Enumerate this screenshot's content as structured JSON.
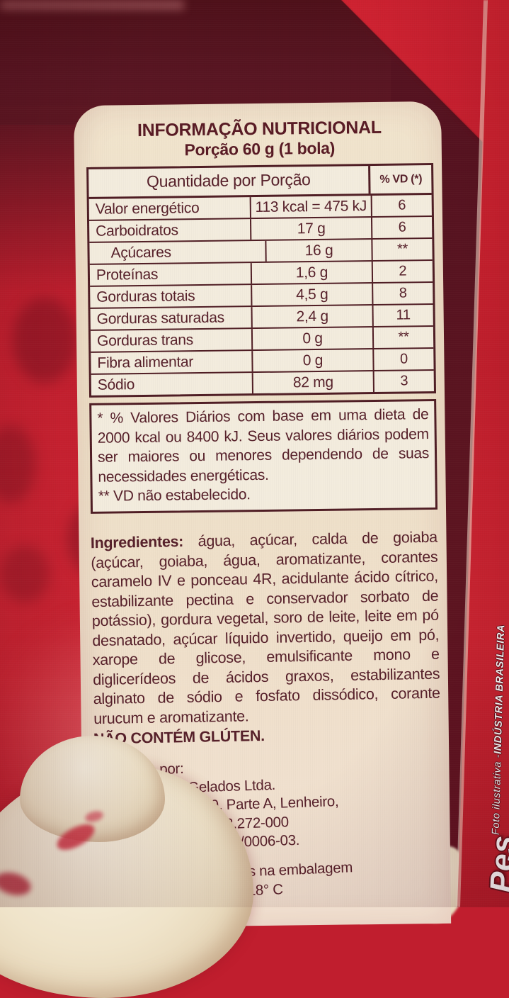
{
  "label": {
    "title": "INFORMAÇÃO NUTRICIONAL",
    "subtitle": "Porção 60 g (1 bola)",
    "table": {
      "header_quantity": "Quantidade por Porção",
      "header_vd": "% VD (*)",
      "rows": [
        {
          "name": "Valor energético",
          "amount": "113 kcal = 475 kJ",
          "vd": "6",
          "indent": false
        },
        {
          "name": "Carboidratos",
          "amount": "17 g",
          "vd": "6",
          "indent": false
        },
        {
          "name": "Açúcares",
          "amount": "16 g",
          "vd": "**",
          "indent": true
        },
        {
          "name": "Proteínas",
          "amount": "1,6 g",
          "vd": "2",
          "indent": false
        },
        {
          "name": "Gorduras totais",
          "amount": "4,5 g",
          "vd": "8",
          "indent": false
        },
        {
          "name": "Gorduras saturadas",
          "amount": "2,4 g",
          "vd": "11",
          "indent": false
        },
        {
          "name": "Gorduras trans",
          "amount": "0 g",
          "vd": "**",
          "indent": false
        },
        {
          "name": "Fibra alimentar",
          "amount": "0 g",
          "vd": "0",
          "indent": false
        },
        {
          "name": "Sódio",
          "amount": "82 mg",
          "vd": "3",
          "indent": false
        }
      ]
    },
    "footnotes": [
      "* % Valores Diários com base em uma dieta de 2000 kcal ou 8400 kJ. Seus valores diários podem ser maiores ou menores dependendo de suas necessidades energéticas.",
      "** VD não estabelecido."
    ],
    "ingredients_label": "Ingredientes:",
    "ingredients_text": "água, açúcar, calda de goiaba (açúcar, goiaba, água, aromatizante, corantes caramelo IV e ponceau 4R, acidulante ácido cítrico, estabilizante pectina e conservador sorbato de potássio), gordura vegetal, soro de leite, leite em pó desnatado, açúcar líquido invertido, queijo em pó, xarope de glicose, emulsificante mono e diglicerídeos de ácidos graxos, estabilizantes alginato de sódio e fosfato dissódico, corante urucum e aromatizante.",
    "gluten_notice": "NÃO CONTÉM GLÚTEN.",
    "manufacturer": {
      "heading": "Fabricado por:",
      "company": "Unilever Brasil Gelados Ltda.",
      "address1": "Av. Gessy Lever, 99, Parte A, Lenheiro,",
      "address2": "Valinhos - SP. CEP 13.272-000",
      "cnpj": "C.N.P.J. n°: 11.806.723/0006-03."
    },
    "validity": {
      "line1": "Válido até/Lote: indicados na embalagem",
      "line2": "Conservar em freezer: - 18° C"
    }
  },
  "side": {
    "photo_credit": "Foto ilustrativa - ",
    "industry": "INDÚSTRIA BRASILEIRA",
    "weight_partial": "Pes"
  },
  "colors": {
    "package_red": "#c4202f",
    "package_dark_maroon": "#561420",
    "label_cream": "#efe1c9",
    "ink_maroon": "#56202a"
  }
}
